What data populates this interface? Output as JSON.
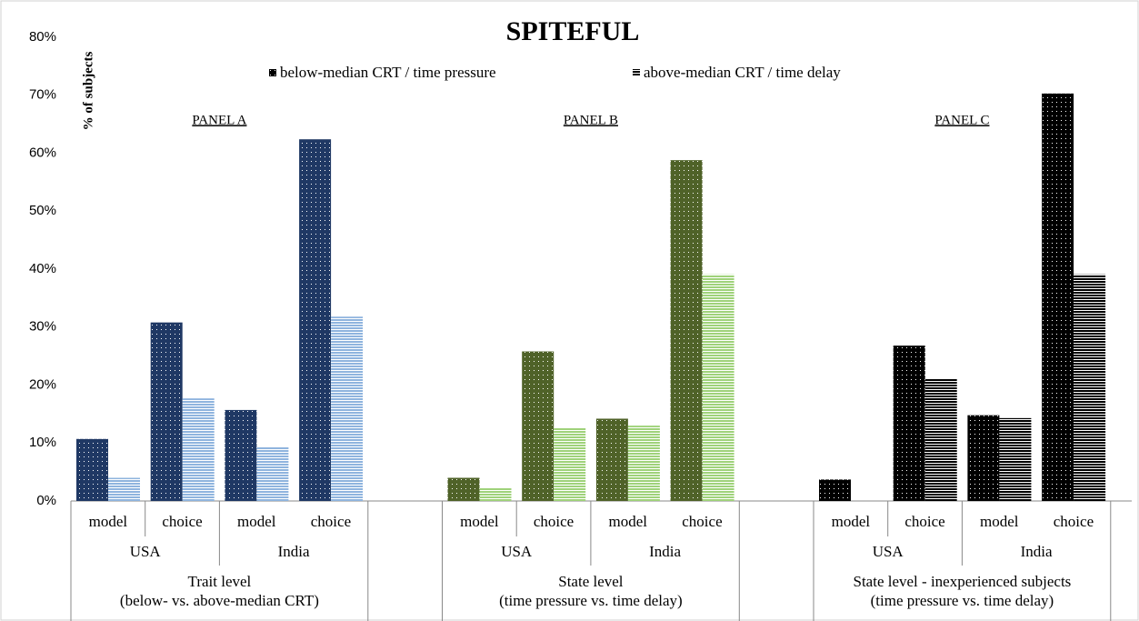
{
  "chart_data": {
    "type": "bar",
    "title": "SPITEFUL",
    "y_label": "% of subjects",
    "panels": [
      "PANEL A",
      "PANEL B",
      "PANEL C"
    ],
    "groups": [
      [
        "Trait level",
        "(below- vs. above-median CRT)"
      ],
      [
        "State level",
        "(time pressure vs. time delay)"
      ],
      [
        "State level - inexperienced subjects",
        "(time pressure vs. time delay)"
      ]
    ],
    "countries": [
      "USA",
      "India",
      "USA",
      "India",
      "USA",
      "India"
    ],
    "categories": [
      "model",
      "choice",
      "model",
      "choice",
      "model",
      "choice",
      "model",
      "choice",
      "model",
      "choice",
      "model",
      "choice"
    ],
    "series": [
      {
        "name": "below-median CRT / time pressure",
        "color": "#000000",
        "panel_colors": [
          "#1f3864",
          "#4f6228",
          "#000000"
        ],
        "values": [
          10.7,
          30.8,
          15.7,
          62.4,
          4.0,
          25.8,
          14.2,
          58.8,
          3.7,
          26.8,
          14.8,
          70.3
        ]
      },
      {
        "name": "above-median CRT / time delay",
        "color": "#000000",
        "panel_colors": [
          "#8fb4de",
          "#9fd27a",
          "#000000"
        ],
        "values": [
          4.0,
          17.7,
          9.3,
          31.8,
          2.2,
          12.6,
          13.0,
          39.1,
          0,
          21.1,
          14.3,
          39.1
        ]
      }
    ],
    "ylim": [
      0,
      80
    ],
    "yticks": [
      {
        "value": 0,
        "label": "0%"
      },
      {
        "value": 10,
        "label": "10%"
      },
      {
        "value": 20,
        "label": "20%"
      },
      {
        "value": 30,
        "label": "30%"
      },
      {
        "value": 40,
        "label": "40%"
      },
      {
        "value": 50,
        "label": "50%"
      },
      {
        "value": 60,
        "label": "60%"
      },
      {
        "value": 70,
        "label": "70%"
      },
      {
        "value": 80,
        "label": "80%"
      }
    ],
    "grid": false
  }
}
